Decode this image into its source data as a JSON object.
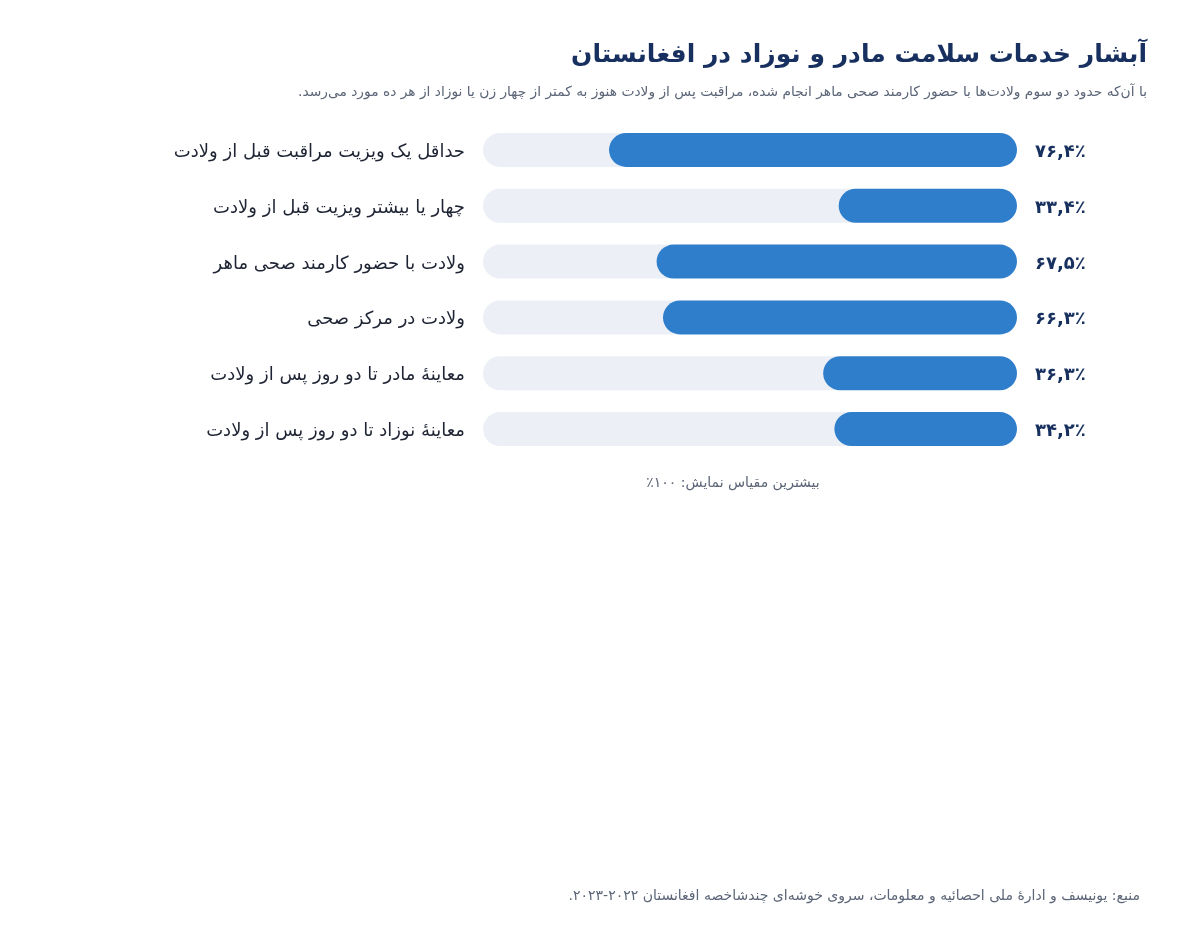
{
  "chart_data": {
    "type": "bar",
    "orientation": "horizontal",
    "title": "آبشار خدمات سلامت مادر و نوزاد در افغانستان",
    "subtitle": "با آن‌که حدود دو سوم ولادت‌ها با حضور کارمند صحی ماهر انجام شده، مراقبت پس از ولادت هنوز به کمتر از چهار زن یا نوزاد از هر ده مورد می‌رسد.",
    "categories": [
      "حداقل یک ویزیت مراقبت قبل از ولادت",
      "چهار یا بیشتر ویزیت قبل از ولادت",
      "ولادت با حضور کارمند صحی ماهر",
      "ولادت در مرکز صحی",
      "معاینهٔ مادر تا دو روز پس از ولادت",
      "معاینهٔ نوزاد تا دو روز پس از ولادت"
    ],
    "values": [
      76.4,
      33.4,
      67.5,
      66.3,
      36.3,
      34.2
    ],
    "value_labels": [
      "۷۶,۴٪",
      "۳۳,۴٪",
      "۶۷,۵٪",
      "۶۶,۳٪",
      "۳۶,۳٪",
      "۳۴,۲٪"
    ],
    "color": "#2f7ecb",
    "xlim": [
      100,
      0
    ],
    "tick_labels": "y",
    "annotations": [
      "بیشترین مقیاس نمایش: ۱۰۰٪",
      "منبع: یونیسف و ادارهٔ ملی احصائیه و معلومات، سروی خوشه‌ای چندشاخصه افغانستان ۲۰۲۲-۲۰۲۳."
    ]
  }
}
